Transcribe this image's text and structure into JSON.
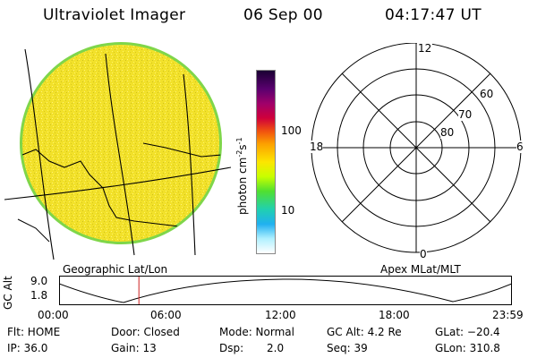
{
  "header": {
    "instrument": "Ultraviolet Imager",
    "date": "06 Sep 00",
    "time": "04:17:47 UT"
  },
  "colors": {
    "disk_fill": "#f2e12a",
    "disk_rim": "#7fd64a",
    "graticule": "#000000",
    "time_marker": "#cc2222"
  },
  "image_panel": {
    "caption": "Geographic Lat/Lon"
  },
  "colorbar": {
    "label": "photon cm",
    "unit_exp1": "-2",
    "unit_mid": "s",
    "unit_exp2": "-1",
    "ticks": [
      "100",
      "10"
    ]
  },
  "polar_plot": {
    "caption": "Apex MLat/MLT",
    "mlt_labels": {
      "top": "12",
      "left": "18",
      "right": "6",
      "bottom": "0"
    },
    "lat_labels": [
      "60",
      "70",
      "80"
    ]
  },
  "altitude_plot": {
    "ylabel": "GC Alt",
    "yticks": [
      "9.0",
      "1.8"
    ],
    "xticks": [
      "00:00",
      "06:00",
      "12:00",
      "18:00",
      "23:59"
    ],
    "current_time_fraction": 0.175
  },
  "info": {
    "row1": {
      "flt": "Flt: HOME",
      "door": "Door: Closed",
      "mode": "Mode: Normal",
      "gcalt": "GC Alt: 4.2 Re",
      "glat": "GLat: −20.4"
    },
    "row2": {
      "ip": "IP: 36.0",
      "gain": "Gain: 13",
      "dsp_label": "Dsp:",
      "dsp_value": "2.0",
      "seq": "Seq: 39",
      "glon": "GLon: 310.8"
    }
  }
}
